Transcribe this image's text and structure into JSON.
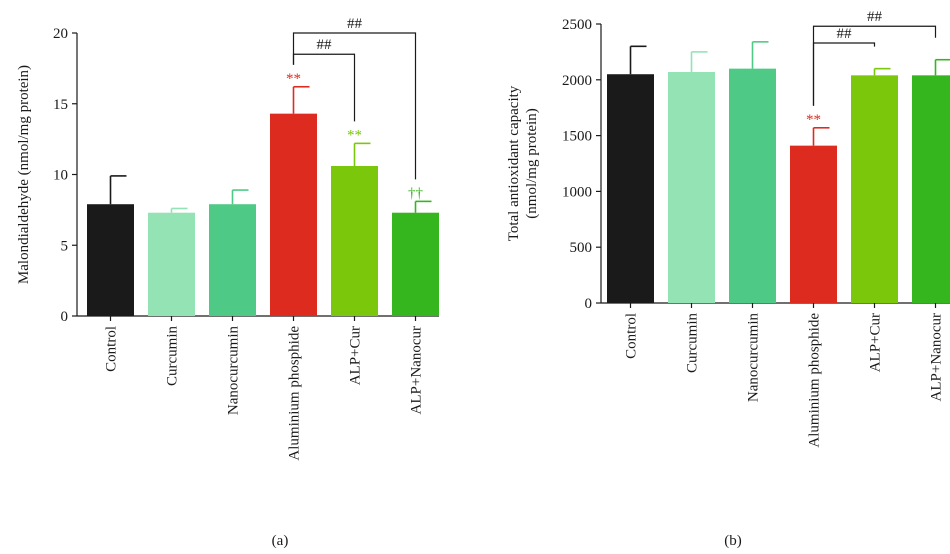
{
  "chart_data": [
    {
      "type": "bar",
      "panel_label": "(a)",
      "ylabel": "Malondialdehyde (nmol/mg protein)",
      "ylim": [
        0,
        20
      ],
      "yticks": [
        "0",
        "5",
        "10",
        "15",
        "20"
      ],
      "categories": [
        "Control",
        "Curcumin",
        "Nanocurcumin",
        "Aluminium phosphide",
        "ALP+Cur",
        "ALP+Nanocur"
      ],
      "values": [
        7.9,
        7.3,
        7.9,
        14.3,
        10.6,
        7.3
      ],
      "errors": [
        2.0,
        0.3,
        1.0,
        1.9,
        1.6,
        0.8
      ],
      "colors": [
        "#1a1a1a",
        "#93e3b5",
        "#4fc986",
        "#dd2c1f",
        "#7ac70c",
        "#35b51e"
      ],
      "annotations": [
        "",
        "",
        "",
        "**",
        "**",
        "††"
      ],
      "annotation_colors": [
        "",
        "",
        "",
        "#dd2c1f",
        "#7ac70c",
        "#35b51e"
      ],
      "brackets": [
        {
          "from": 3,
          "to": 4,
          "label": "##",
          "y": 18.5
        },
        {
          "from": 3,
          "to": 5,
          "label": "##",
          "y": 20.0
        }
      ],
      "grid": false
    },
    {
      "type": "bar",
      "panel_label": "(b)",
      "ylabel": "Total antioxidant capacity (nmol/mg protein)",
      "ylabel_lines": [
        "Total antioxidant capacity",
        "(nmol/mg protein)"
      ],
      "ylim": [
        0,
        2500
      ],
      "yticks": [
        "0",
        "500",
        "1000",
        "1500",
        "2000",
        "2500"
      ],
      "categories": [
        "Control",
        "Curcumin",
        "Nanocurcumin",
        "Aluminium phosphide",
        "ALP+Cur",
        "ALP+Nanocur"
      ],
      "values": [
        2050,
        2070,
        2100,
        1410,
        2040,
        2040
      ],
      "errors": [
        250,
        180,
        240,
        160,
        60,
        140
      ],
      "colors": [
        "#1a1a1a",
        "#93e3b5",
        "#4fc986",
        "#dd2c1f",
        "#7ac70c",
        "#35b51e"
      ],
      "annotations": [
        "",
        "",
        "",
        "**",
        "",
        ""
      ],
      "annotation_colors": [
        "",
        "",
        "",
        "#dd2c1f",
        "",
        ""
      ],
      "brackets": [
        {
          "from": 3,
          "to": 4,
          "label": "##",
          "y": 2330
        },
        {
          "from": 3,
          "to": 5,
          "label": "##",
          "y": 2480
        }
      ],
      "grid": false
    }
  ]
}
